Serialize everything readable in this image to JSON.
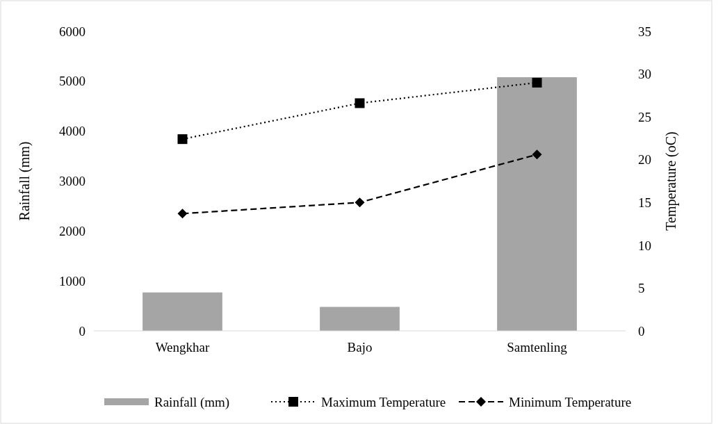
{
  "chart_data": {
    "type": "bar",
    "categories": [
      "Wengkhar",
      "Bajo",
      "Samtenling"
    ],
    "ylabel": "Rainfall (mm)",
    "y2label": "Temperature (oC)",
    "ylim": [
      0,
      6000
    ],
    "yticks": [
      0,
      1000,
      2000,
      3000,
      4000,
      5000,
      6000
    ],
    "y2lim": [
      0,
      35
    ],
    "y2ticks": [
      0,
      5,
      10,
      15,
      20,
      25,
      30,
      35
    ],
    "grid": false,
    "legend": "bottom",
    "series": [
      {
        "name": "Rainfall (mm)",
        "color": "#a5a5a5",
        "values": [
          770,
          480,
          5080
        ]
      },
      {
        "name": "Maximum Temperature",
        "type": "line",
        "axis": "y2",
        "color": "#000000",
        "marker": "square",
        "line_style": "dotted",
        "values": [
          22.4,
          26.6,
          29.0
        ]
      },
      {
        "name": "Minimum Temperature",
        "type": "line",
        "axis": "y2",
        "color": "#000000",
        "marker": "diamond",
        "line_style": "dashed",
        "values": [
          13.7,
          15.0,
          20.6
        ]
      }
    ]
  }
}
